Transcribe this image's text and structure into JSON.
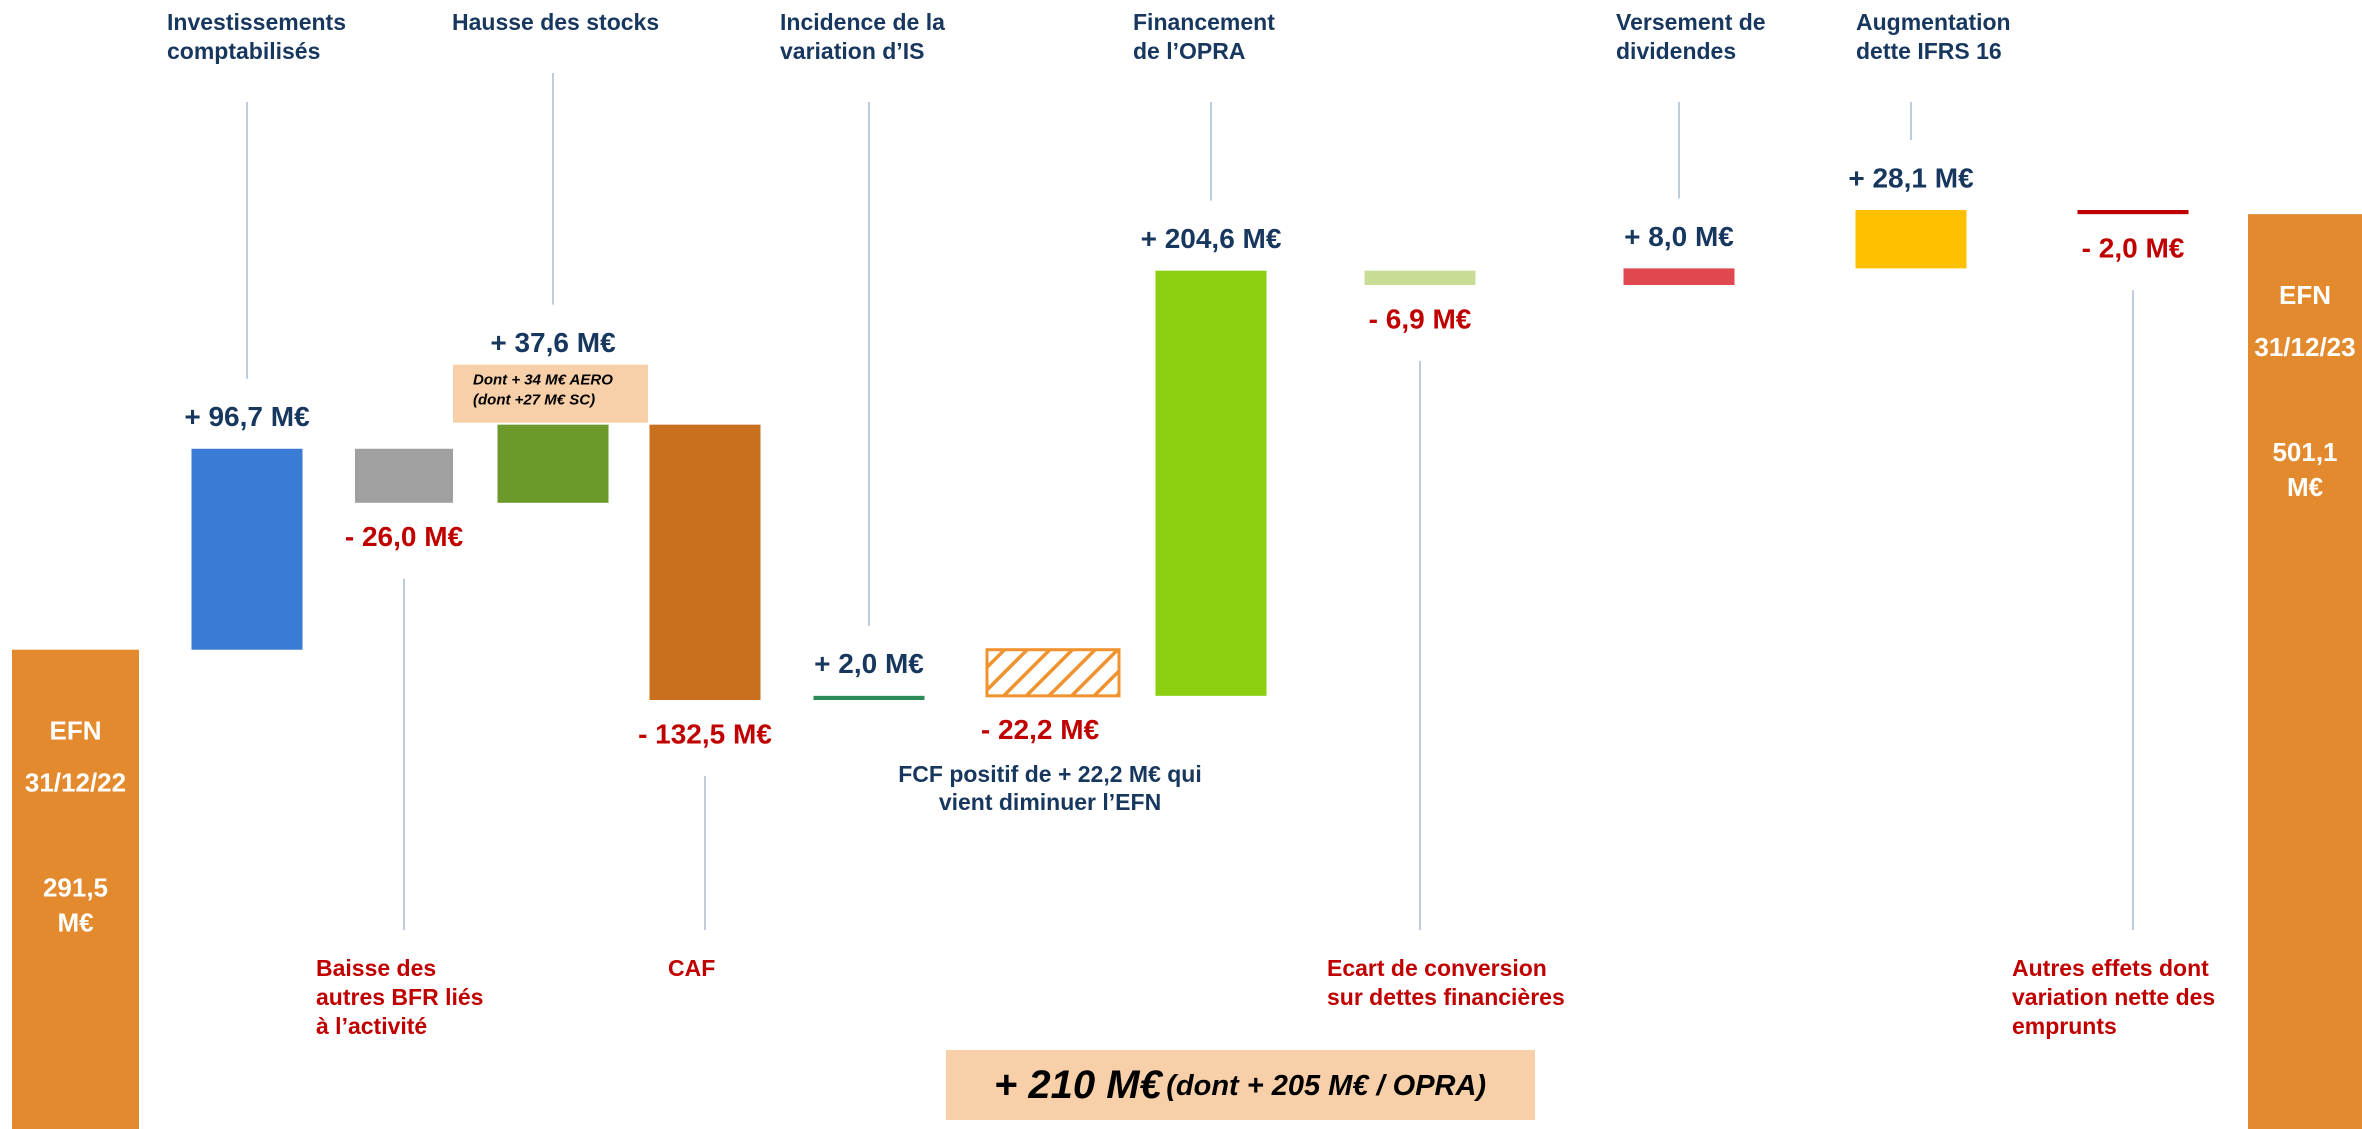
{
  "chart_data": {
    "type": "waterfall",
    "start": {
      "label": [
        "EFN",
        "31/12/22"
      ],
      "value": 291.5,
      "value_label": [
        "291,5",
        "M€"
      ],
      "color": "#e48a2e"
    },
    "end": {
      "label": [
        "EFN",
        "31/12/23"
      ],
      "value": 501.1,
      "value_label": [
        "501,1",
        "M€"
      ],
      "color": "#e48a2e"
    },
    "categories": [
      [
        "Investissements",
        "comptabilisés"
      ],
      [
        "Baisse des",
        "autres BFR liés",
        "à l’activité"
      ],
      [
        "Hausse des stocks"
      ],
      [
        "CAF"
      ],
      [
        "Incidence de la",
        "variation d’IS"
      ],
      [
        "Financement",
        "de l’OPRA"
      ],
      [
        "Ecart de conversion",
        "sur dettes financières"
      ],
      [
        "Versement de",
        "dividendes"
      ],
      [
        "Augmentation",
        "dette IFRS 16"
      ],
      [
        "Autres effets dont",
        "variation nette des",
        "emprunts"
      ]
    ],
    "values": [
      96.7,
      -26.0,
      37.6,
      -132.5,
      2.0,
      204.6,
      -6.9,
      8.0,
      28.1,
      -2.0
    ],
    "value_labels": [
      "+ 96,7 M€",
      "- 26,0 M€",
      "+ 37,6 M€",
      "- 132,5 M€",
      "+ 2,0 M€",
      "+ 204,6 M€",
      "- 6,9 M€",
      "+ 8,0 M€",
      "+ 28,1 M€",
      "- 2,0 M€"
    ],
    "colors": [
      "#3a7bd5",
      "#a0a0a0",
      "#6b9a2a",
      "#c8701e",
      "#2e8b57",
      "#8ccf10",
      "#c8dc96",
      "#e04850",
      "#ffc000",
      "#c00000"
    ],
    "note": [
      "Dont + 34 M€ AERO",
      "(dont +27 M€ SC)"
    ],
    "subtotal": {
      "value": -22.2,
      "value_label": "- 22,2 M€",
      "color": "#f0922e",
      "annotation": [
        "FCF positif de + 22,2 M€ qui",
        "vient diminuer l’EFN"
      ]
    },
    "summary": {
      "main": "+ 210 M€",
      "detail": "(dont + 205 M€ / OPRA)"
    }
  }
}
